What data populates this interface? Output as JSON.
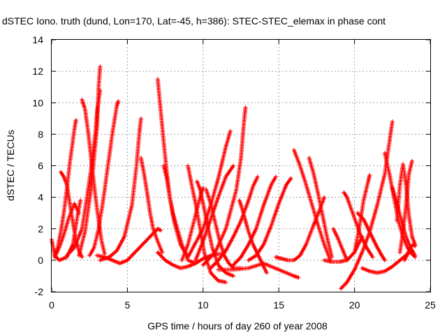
{
  "chart_data": {
    "type": "scatter",
    "title": "dSTEC Iono. truth (dund, Lon=170, Lat=-45, h=386): STEC-STEC_elemax in phase cont",
    "xlabel": "GPS time / hours of day 260 of year 2008",
    "ylabel": "dSTEC  / TECUs",
    "xlim": [
      0,
      25
    ],
    "ylim": [
      -2,
      14
    ],
    "xticks": [
      "0",
      "5",
      "10",
      "15",
      "20",
      "25"
    ],
    "yticks": [
      "-2",
      "0",
      "2",
      "4",
      "6",
      "8",
      "10",
      "12",
      "14"
    ],
    "grid": true,
    "marker": "+",
    "color": "#ff0000",
    "series": [
      {
        "x": [
          0.0,
          0.2,
          0.5,
          1.0,
          1.4,
          1.7,
          1.9
        ],
        "y": [
          1.3,
          0.3,
          0.0,
          0.2,
          1.0,
          2.8,
          3.8
        ]
      },
      {
        "x": [
          0.2,
          0.4,
          0.6,
          0.8,
          1.0,
          1.2,
          1.5,
          1.6
        ],
        "y": [
          0.3,
          0.8,
          1.8,
          3.0,
          4.5,
          6.2,
          8.3,
          8.9
        ]
      },
      {
        "x": [
          0.6,
          0.8,
          1.0,
          1.2,
          1.4,
          1.6,
          1.8,
          2.0
        ],
        "y": [
          5.6,
          5.3,
          4.8,
          3.6,
          2.4,
          1.3,
          0.6,
          0.2
        ]
      },
      {
        "x": [
          0.2,
          0.5,
          0.8,
          1.1,
          1.5,
          1.8
        ],
        "y": [
          0.2,
          0.8,
          1.6,
          2.6,
          3.6,
          3.0
        ]
      },
      {
        "x": [
          1.0,
          1.5,
          2.0,
          2.3,
          2.6,
          2.9,
          3.0,
          3.2
        ],
        "y": [
          0.3,
          0.8,
          2.0,
          3.8,
          5.8,
          8.2,
          9.5,
          10.8
        ]
      },
      {
        "x": [
          2.0,
          2.2,
          2.4,
          2.6,
          2.8,
          3.0,
          3.3,
          3.5
        ],
        "y": [
          10.2,
          9.6,
          8.2,
          6.5,
          4.8,
          3.2,
          1.2,
          0.4
        ]
      },
      {
        "x": [
          1.8,
          2.2,
          2.6,
          3.0,
          3.1,
          3.2
        ],
        "y": [
          0.3,
          1.8,
          4.5,
          8.5,
          11.0,
          12.3
        ]
      },
      {
        "x": [
          2.5,
          2.8,
          3.1,
          3.4,
          3.7,
          4.0,
          4.3,
          4.4
        ],
        "y": [
          0.3,
          0.8,
          2.0,
          3.8,
          5.9,
          8.0,
          9.8,
          10.1
        ]
      },
      {
        "x": [
          3.0,
          3.5,
          4.0,
          4.5,
          5.0,
          5.5,
          6.0,
          6.5,
          7.0,
          7.2
        ],
        "y": [
          0.3,
          0.2,
          0.0,
          -0.2,
          0.0,
          0.5,
          1.0,
          1.5,
          2.0,
          1.9
        ]
      },
      {
        "x": [
          3.2,
          3.8,
          4.3,
          4.8,
          5.3,
          5.6,
          5.8,
          5.9
        ],
        "y": [
          0.0,
          0.2,
          0.6,
          1.5,
          3.5,
          6.0,
          8.2,
          9.0
        ]
      },
      {
        "x": [
          5.9,
          6.1,
          6.3,
          6.5,
          6.7,
          7.0,
          7.3
        ],
        "y": [
          6.5,
          5.5,
          4.3,
          3.0,
          2.0,
          1.2,
          0.5
        ]
      },
      {
        "x": [
          7.0,
          7.2,
          7.4,
          7.6,
          7.8,
          8.1,
          8.5,
          9.0
        ],
        "y": [
          11.5,
          9.5,
          7.5,
          5.6,
          4.0,
          2.4,
          1.0,
          0.2
        ]
      },
      {
        "x": [
          7.4,
          7.6,
          7.8,
          8.0,
          8.3,
          8.6,
          9.0,
          9.5
        ],
        "y": [
          6.0,
          5.2,
          4.0,
          3.0,
          2.0,
          1.0,
          0.0,
          -0.2
        ]
      },
      {
        "x": [
          7.0,
          7.5,
          8.0,
          8.5,
          9.0,
          9.5,
          10.0,
          10.5,
          11.0,
          11.2
        ],
        "y": [
          0.5,
          0.0,
          -0.3,
          -0.5,
          -0.4,
          -0.2,
          0.1,
          0.3,
          0.4,
          0.4
        ]
      },
      {
        "x": [
          8.6,
          9.0,
          9.4,
          9.8,
          10.0
        ],
        "y": [
          0.0,
          1.0,
          2.5,
          4.0,
          4.6
        ]
      },
      {
        "x": [
          9.0,
          9.2,
          9.5,
          9.8,
          10.1,
          10.5,
          11.0,
          11.5
        ],
        "y": [
          6.0,
          5.0,
          3.6,
          2.0,
          0.4,
          -0.8,
          -1.3,
          -1.4
        ]
      },
      {
        "x": [
          9.6,
          9.8,
          10.0,
          10.3,
          10.6,
          11.0,
          11.5,
          12.0
        ],
        "y": [
          5.0,
          4.5,
          3.6,
          2.2,
          0.8,
          -0.3,
          -0.8,
          -1.0
        ]
      },
      {
        "x": [
          10.2,
          10.5,
          10.8,
          11.1,
          11.4,
          11.7,
          12.0,
          12.5
        ],
        "y": [
          4.5,
          3.6,
          2.4,
          1.2,
          0.3,
          -0.2,
          -0.5,
          -0.5
        ]
      },
      {
        "x": [
          9.5,
          10.0,
          10.5,
          11.0,
          11.5,
          12.0
        ],
        "y": [
          0.0,
          1.2,
          2.6,
          4.0,
          5.3,
          6.0
        ]
      },
      {
        "x": [
          9.0,
          10.0,
          10.5,
          11.0,
          11.5,
          11.8
        ],
        "y": [
          0.2,
          2.0,
          3.5,
          5.2,
          7.2,
          8.2
        ]
      },
      {
        "x": [
          10.0,
          10.8,
          11.5,
          12.2,
          12.5,
          12.7,
          12.8
        ],
        "y": [
          -0.3,
          0.5,
          2.0,
          4.5,
          6.5,
          8.8,
          9.7
        ]
      },
      {
        "x": [
          12.4,
          12.6,
          12.8,
          13.0,
          13.3,
          13.7,
          14.2
        ],
        "y": [
          3.8,
          3.2,
          2.5,
          1.8,
          1.0,
          0.2,
          -0.8
        ]
      },
      {
        "x": [
          10.5,
          11.0,
          11.5,
          12.0,
          12.5,
          13.0,
          13.3,
          13.6
        ],
        "y": [
          -0.5,
          0.0,
          0.6,
          1.5,
          2.5,
          3.8,
          4.7,
          5.3
        ]
      },
      {
        "x": [
          12.0,
          12.5,
          13.0,
          13.5,
          14.0,
          14.5,
          14.8
        ],
        "y": [
          -0.3,
          0.2,
          1.0,
          2.0,
          3.5,
          4.8,
          5.3
        ]
      },
      {
        "x": [
          11.0,
          12.0,
          13.0,
          14.0,
          15.0,
          16.0,
          16.3
        ],
        "y": [
          -0.6,
          -0.6,
          -0.5,
          -0.2,
          -0.6,
          -1.0,
          -1.1
        ]
      },
      {
        "x": [
          13.0,
          13.5,
          14.0,
          14.5,
          15.0,
          15.5,
          15.8
        ],
        "y": [
          0.0,
          0.3,
          1.0,
          2.2,
          3.6,
          4.8,
          5.2
        ]
      },
      {
        "x": [
          14.8,
          15.2,
          15.6,
          16.0,
          16.4,
          16.8,
          17.2,
          17.7,
          18.0
        ],
        "y": [
          0.2,
          0.1,
          0.0,
          0.0,
          0.3,
          1.0,
          2.0,
          3.2,
          4.0
        ]
      },
      {
        "x": [
          16.0,
          16.4,
          16.8,
          17.2,
          17.6,
          18.0,
          18.4
        ],
        "y": [
          7.0,
          6.0,
          4.8,
          3.5,
          2.2,
          1.0,
          0.0
        ]
      },
      {
        "x": [
          17.0,
          17.3,
          17.6,
          17.9,
          18.2,
          18.5
        ],
        "y": [
          6.5,
          5.5,
          4.2,
          2.8,
          1.4,
          0.2
        ]
      },
      {
        "x": [
          18.0,
          18.5,
          19.0,
          19.5,
          20.0,
          20.5
        ],
        "y": [
          0.0,
          -0.1,
          -0.1,
          0.0,
          0.5,
          1.5
        ]
      },
      {
        "x": [
          18.6,
          18.9,
          19.2,
          19.5
        ],
        "y": [
          2.0,
          1.4,
          0.7,
          0.0
        ]
      },
      {
        "x": [
          19.3,
          19.5,
          19.8,
          20.1,
          20.4,
          20.8,
          21.2
        ],
        "y": [
          4.3,
          4.0,
          3.2,
          2.4,
          1.6,
          0.8,
          0.2
        ]
      },
      {
        "x": [
          19.1,
          19.5,
          20.0,
          20.5,
          21.0,
          21.5,
          22.0,
          22.3,
          22.5
        ],
        "y": [
          -1.8,
          -1.4,
          -0.6,
          0.5,
          1.8,
          3.5,
          5.5,
          7.5,
          8.8
        ]
      },
      {
        "x": [
          20.0,
          20.3,
          20.6,
          20.9,
          21.0
        ],
        "y": [
          0.5,
          2.0,
          3.8,
          5.0,
          5.4
        ]
      },
      {
        "x": [
          20.2,
          20.6,
          21.0,
          21.4,
          21.8,
          22.0
        ],
        "y": [
          3.0,
          2.6,
          1.8,
          1.0,
          0.3,
          0.0
        ]
      },
      {
        "x": [
          20.5,
          21.0,
          21.5,
          22.0,
          22.5,
          23.0,
          23.5,
          23.8
        ],
        "y": [
          -0.5,
          -0.7,
          -0.8,
          -0.7,
          -0.4,
          0.0,
          0.4,
          0.6
        ]
      },
      {
        "x": [
          22.0,
          22.3,
          22.6,
          22.9,
          23.2,
          23.5,
          23.8,
          24.0
        ],
        "y": [
          6.8,
          5.5,
          4.0,
          2.5,
          1.5,
          0.8,
          0.4,
          0.2
        ]
      },
      {
        "x": [
          22.5,
          22.8,
          23.1,
          23.4,
          23.7,
          24.0
        ],
        "y": [
          4.6,
          3.6,
          2.5,
          1.5,
          0.8,
          0.3
        ]
      },
      {
        "x": [
          22.8,
          23.0,
          23.2,
          23.4,
          23.6,
          23.8,
          24.0
        ],
        "y": [
          2.5,
          4.8,
          6.1,
          4.8,
          2.8,
          1.5,
          1.0
        ]
      },
      {
        "x": [
          23.0,
          23.2,
          23.4,
          23.6,
          23.8
        ],
        "y": [
          0.5,
          1.8,
          3.5,
          5.5,
          6.3
        ]
      },
      {
        "x": [
          23.3,
          23.5,
          23.7,
          23.9,
          24.0
        ],
        "y": [
          0.0,
          0.4,
          0.8,
          1.0,
          0.9
        ]
      }
    ]
  }
}
